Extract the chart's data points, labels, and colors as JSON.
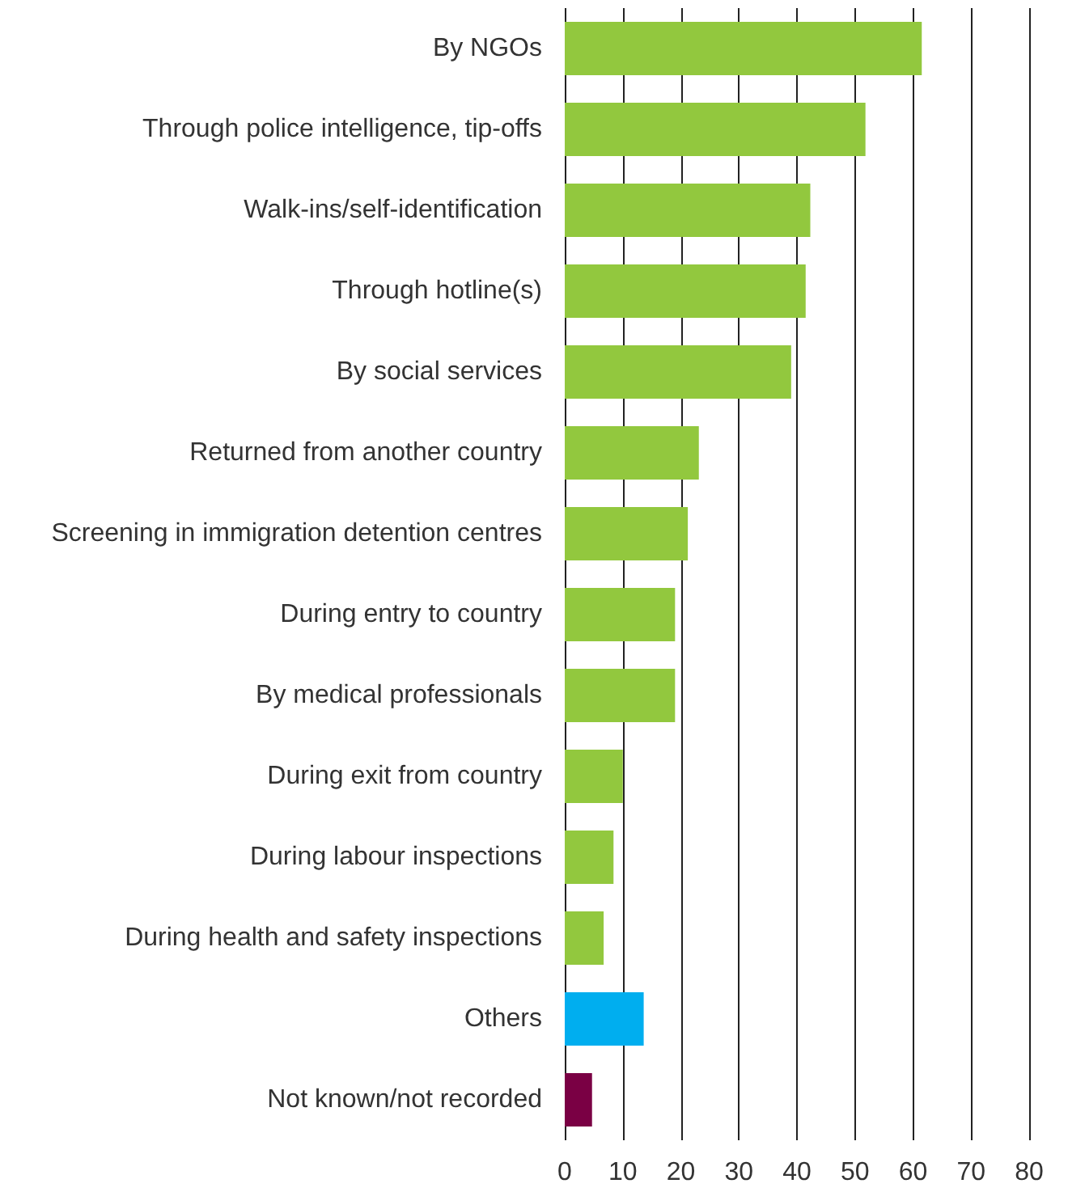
{
  "chart_data": {
    "type": "bar",
    "orientation": "horizontal",
    "categories": [
      "By NGOs",
      "Through police intelligence, tip-offs",
      "Walk-ins/self-identification",
      "Through hotline(s)",
      "By social services",
      "Returned from another country",
      "Screening in immigration detention centres",
      "During entry to country",
      "By medical professionals",
      "During exit from country",
      "During labour inspections",
      "During health and safety inspections",
      "Others",
      "Not known/not recorded"
    ],
    "values": [
      61.5,
      51.8,
      42.3,
      41.5,
      39,
      23.1,
      21.2,
      19,
      19,
      10,
      8.4,
      6.7,
      13.6,
      4.7
    ],
    "colors": [
      "#92c83e",
      "#92c83e",
      "#92c83e",
      "#92c83e",
      "#92c83e",
      "#92c83e",
      "#92c83e",
      "#92c83e",
      "#92c83e",
      "#92c83e",
      "#92c83e",
      "#92c83e",
      "#00aeef",
      "#7a0044"
    ],
    "xlim": [
      0,
      80
    ],
    "xticks": [
      0,
      10,
      20,
      30,
      40,
      50,
      60,
      70,
      80
    ],
    "grid": "x"
  }
}
